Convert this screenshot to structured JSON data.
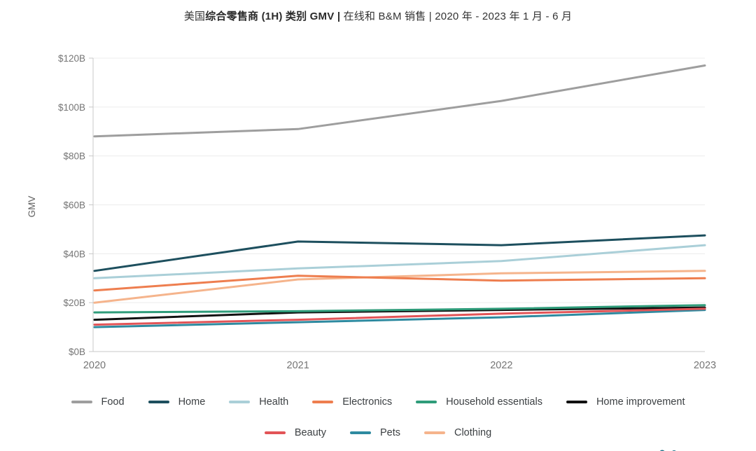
{
  "title": {
    "prefix": "美国",
    "bold": "综合零售商 (1H) 类别 GMV | ",
    "rest": "在线和 B&M 销售 | 2020 年 - 2023 年 1 月 - 6 月"
  },
  "chart_data": {
    "type": "line",
    "x_labels": [
      "2020",
      "2021",
      "2022",
      "2023"
    ],
    "ylabel": "GMV",
    "ylim": [
      0,
      120
    ],
    "ytick_step": 20,
    "ytick_labels": [
      "$0B",
      "$20B",
      "$40B",
      "$60B",
      "$80B",
      "$100B",
      "$120B"
    ],
    "grid": true,
    "legend_position": "bottom",
    "series": [
      {
        "name": "Food",
        "color": "#9e9e9e",
        "values": [
          88,
          91,
          102.5,
          117
        ]
      },
      {
        "name": "Home",
        "color": "#1d4f5e",
        "values": [
          33,
          45,
          43.5,
          47.5
        ]
      },
      {
        "name": "Health",
        "color": "#aacfd8",
        "values": [
          30,
          34,
          37,
          43.5
        ]
      },
      {
        "name": "Electronics",
        "color": "#ee7e4f",
        "values": [
          25,
          31,
          29,
          30
        ]
      },
      {
        "name": "Household essentials",
        "color": "#2f9c7a",
        "values": [
          16,
          16.5,
          17.5,
          19
        ]
      },
      {
        "name": "Home improvement",
        "color": "#111111",
        "values": [
          13,
          16,
          17,
          18
        ]
      },
      {
        "name": "Beauty",
        "color": "#e25457",
        "values": [
          11,
          13,
          15.5,
          17.5
        ]
      },
      {
        "name": "Pets",
        "color": "#2e8aa0",
        "values": [
          10,
          12,
          14,
          17
        ]
      },
      {
        "name": "Clothing",
        "color": "#f5b48c",
        "values": [
          20,
          29.5,
          32,
          33
        ]
      }
    ],
    "legend_rows": [
      [
        "Food",
        "Home",
        "Health",
        "Electronics",
        "Household essentials",
        "Home improvement"
      ],
      [
        "Beauty",
        "Pets",
        "Clothing"
      ]
    ]
  },
  "watermark": {
    "color": "#1d7288"
  }
}
